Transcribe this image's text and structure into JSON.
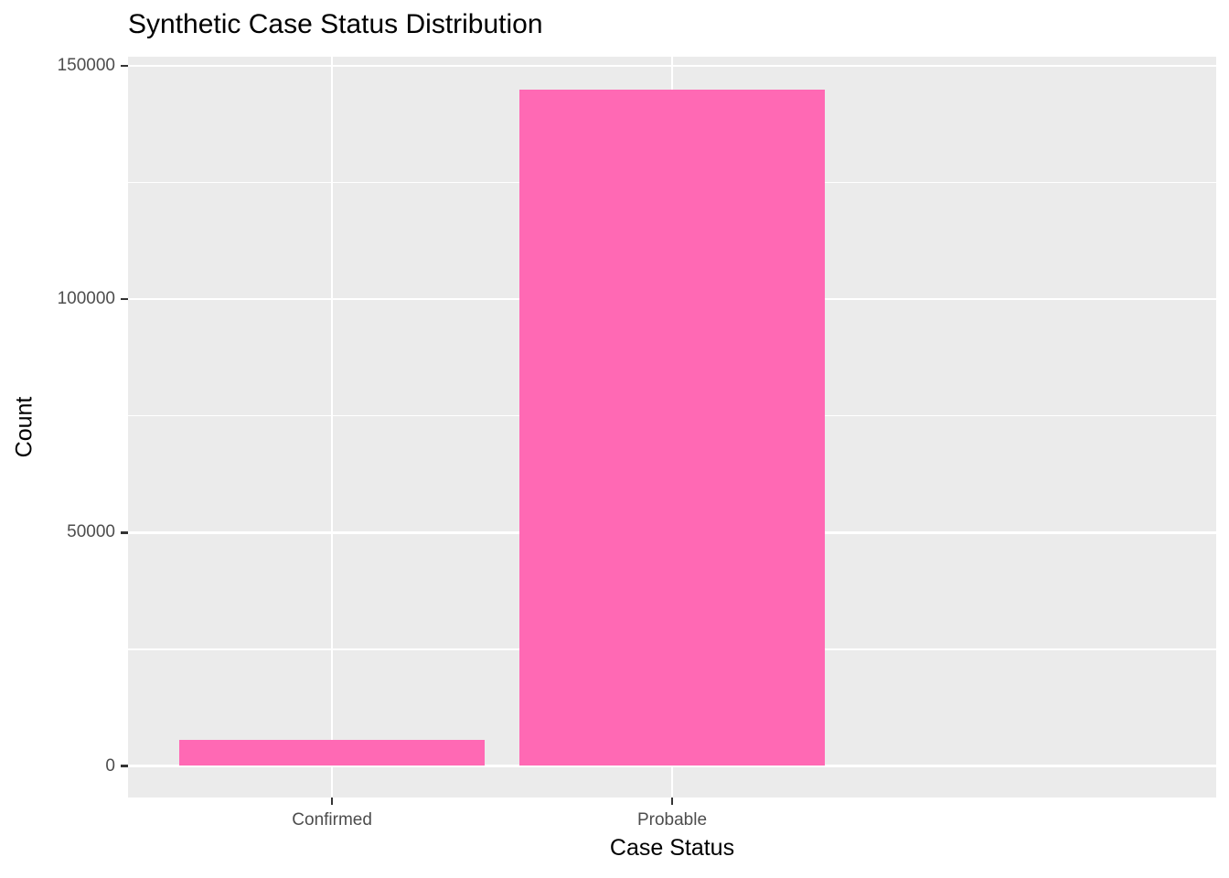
{
  "chart_data": {
    "type": "bar",
    "title": "Synthetic Case Status Distribution",
    "categories": [
      "Confirmed",
      "Probable"
    ],
    "values": [
      5500,
      145000
    ],
    "xlabel": "Case Status",
    "ylabel": "Count",
    "ylim": [
      0,
      150000
    ],
    "yticks": [
      0,
      50000,
      100000,
      150000
    ],
    "ytick_labels": [
      "0",
      "50000",
      "100000",
      "150000"
    ],
    "yticks_minor": [
      25000,
      75000,
      125000
    ],
    "grid": "on",
    "legend": "none",
    "bar_width_fraction": 0.9,
    "colors": {
      "bar_fill": "#FF69B4",
      "panel_background": "#EBEBEB",
      "gridline": "#FFFFFF",
      "tick_label": "#4D4D4D",
      "tick_mark": "#333333",
      "title_text": "#000000",
      "figure_background": "#FFFFFF"
    }
  }
}
